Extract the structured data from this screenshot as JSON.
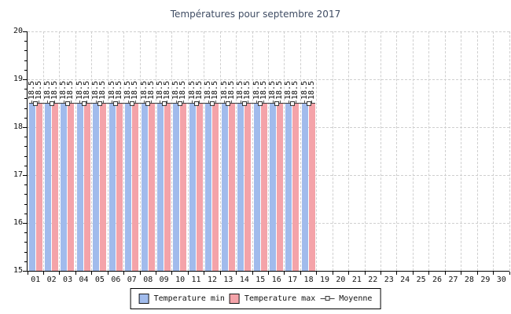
{
  "title": "Températures pour septembre 2017",
  "chart_data": {
    "type": "bar",
    "title": "Températures pour septembre 2017",
    "xlabel": "",
    "ylabel": "",
    "ylim": [
      15,
      20
    ],
    "y_major_step": 1,
    "y_minor_step": 0.2,
    "grid": true,
    "legend_position": "bottom",
    "value_labels_shown": true,
    "categories": [
      "01",
      "02",
      "03",
      "04",
      "05",
      "06",
      "07",
      "08",
      "09",
      "10",
      "11",
      "12",
      "13",
      "14",
      "15",
      "16",
      "17",
      "18",
      "19",
      "20",
      "21",
      "22",
      "23",
      "24",
      "25",
      "26",
      "27",
      "28",
      "29",
      "30"
    ],
    "series": [
      {
        "name": "Temperature min",
        "type": "bar",
        "color": "#A1BBEC",
        "values": [
          18.5,
          18.5,
          18.5,
          18.5,
          18.5,
          18.5,
          18.5,
          18.5,
          18.5,
          18.5,
          18.5,
          18.5,
          18.5,
          18.5,
          18.5,
          18.5,
          18.5,
          18.5,
          null,
          null,
          null,
          null,
          null,
          null,
          null,
          null,
          null,
          null,
          null,
          null
        ]
      },
      {
        "name": "Temperature max",
        "type": "bar",
        "color": "#F4A3A9",
        "values": [
          18.5,
          18.5,
          18.5,
          18.5,
          18.5,
          18.5,
          18.5,
          18.5,
          18.5,
          18.5,
          18.5,
          18.5,
          18.5,
          18.5,
          18.5,
          18.5,
          18.5,
          18.5,
          null,
          null,
          null,
          null,
          null,
          null,
          null,
          null,
          null,
          null,
          null,
          null
        ]
      },
      {
        "name": "Moyenne",
        "type": "line",
        "color": "#3a3a3a",
        "values": [
          18.5,
          18.5,
          18.5,
          18.5,
          18.5,
          18.5,
          18.5,
          18.5,
          18.5,
          18.5,
          18.5,
          18.5,
          18.5,
          18.5,
          18.5,
          18.5,
          18.5,
          18.5,
          null,
          null,
          null,
          null,
          null,
          null,
          null,
          null,
          null,
          null,
          null,
          null
        ]
      }
    ],
    "colors": {
      "title": "#3F4C63",
      "grid": "#cfcfcf",
      "axis": "#000000",
      "marker_fill": "#f4f4f4"
    }
  }
}
